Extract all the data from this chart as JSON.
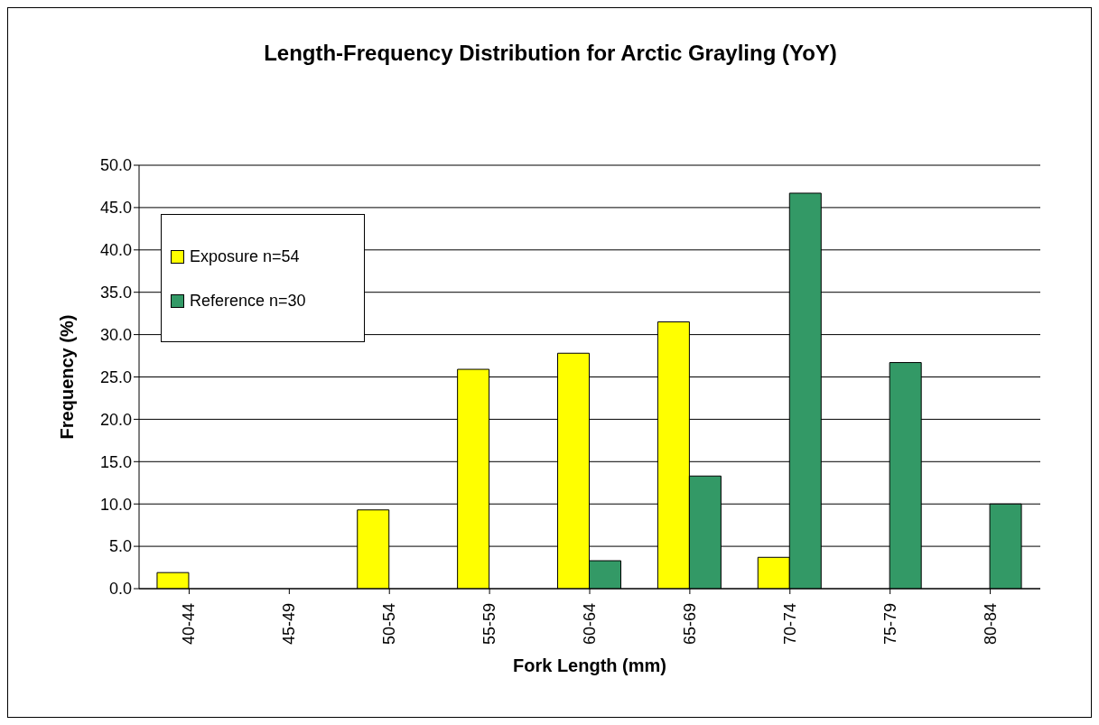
{
  "chart_data": {
    "type": "bar",
    "title": "Length-Frequency Distribution for Arctic Grayling (YoY)",
    "xlabel": "Fork Length (mm)",
    "ylabel": "Frequency (%)",
    "categories": [
      "40-44",
      "45-49",
      "50-54",
      "55-59",
      "60-64",
      "65-69",
      "70-74",
      "75-79",
      "80-84"
    ],
    "series": [
      {
        "name": "Exposure n=54",
        "color": "#ffff00",
        "values": [
          1.9,
          0,
          9.3,
          25.9,
          27.8,
          31.5,
          3.7,
          0,
          0
        ]
      },
      {
        "name": "Reference n=30",
        "color": "#339966",
        "values": [
          0,
          0,
          0,
          0,
          3.3,
          13.3,
          46.7,
          26.7,
          10.0
        ]
      }
    ],
    "ylim": [
      0,
      50
    ],
    "yticks": [
      {
        "value": 0,
        "label": "0.0"
      },
      {
        "value": 5,
        "label": "5.0"
      },
      {
        "value": 10,
        "label": "10.0"
      },
      {
        "value": 15,
        "label": "15.0"
      },
      {
        "value": 20,
        "label": "20.0"
      },
      {
        "value": 25,
        "label": "25.0"
      },
      {
        "value": 30,
        "label": "30.0"
      },
      {
        "value": 35,
        "label": "35.0"
      },
      {
        "value": 40,
        "label": "40.0"
      },
      {
        "value": 45,
        "label": "45.0"
      },
      {
        "value": 50,
        "label": "50.0"
      }
    ],
    "grid": "y",
    "legend": "top left"
  }
}
